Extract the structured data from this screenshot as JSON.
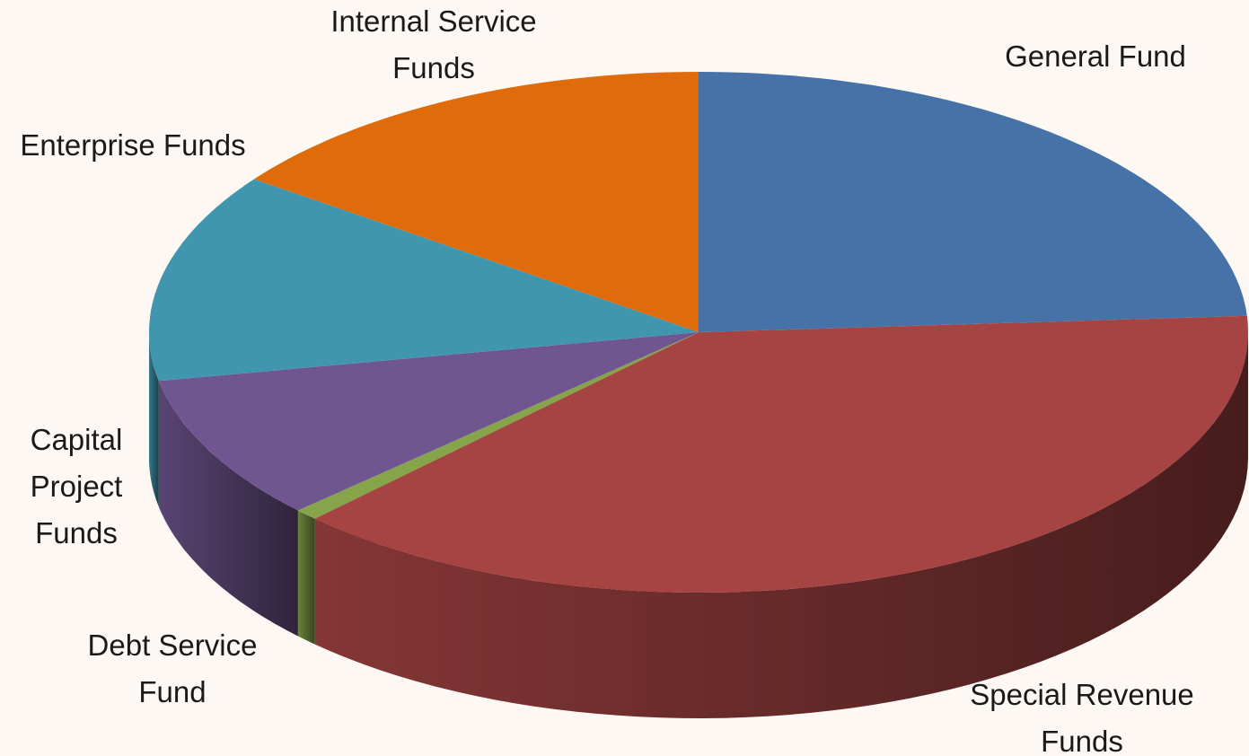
{
  "chart_data": {
    "type": "pie",
    "categories": [
      "General Fund",
      "Special Revenue Funds",
      "Debt Service Fund",
      "Capital Project Funds",
      "Enterprise Funds",
      "Internal Service Funds"
    ],
    "values": [
      24,
      38.3,
      0.7,
      9,
      13,
      15
    ],
    "colors": [
      "#4672a8",
      "#a64443",
      "#86a44a",
      "#6f5690",
      "#4096ae",
      "#e06b0a"
    ]
  }
}
